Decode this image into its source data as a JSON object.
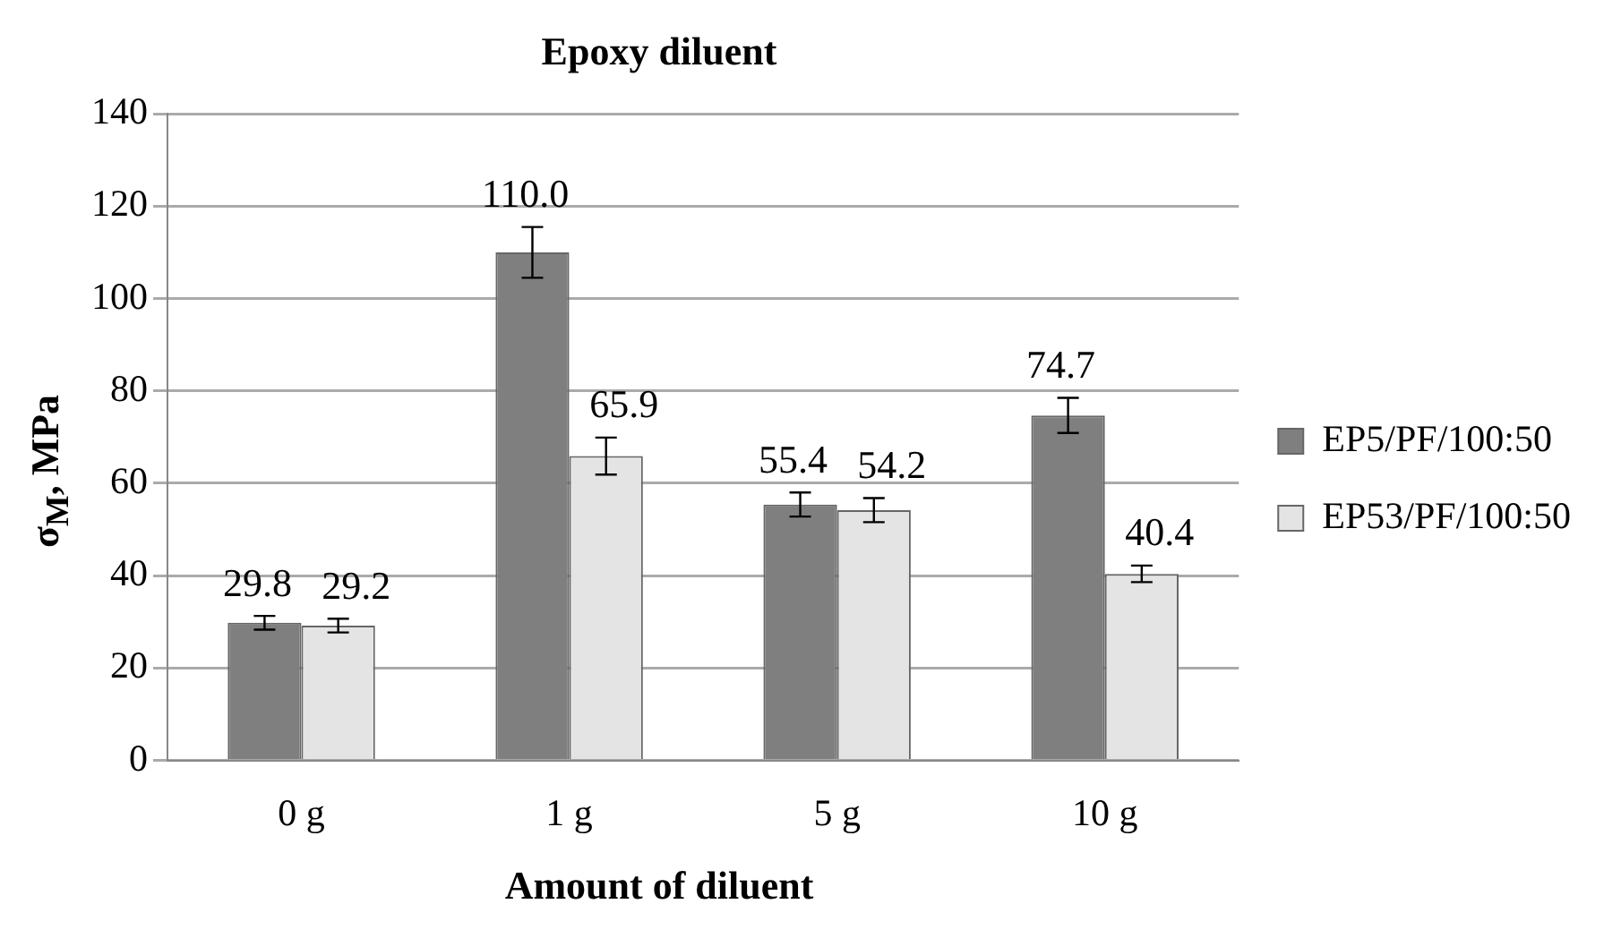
{
  "chart_data": {
    "type": "bar",
    "title": "Epoxy diluent",
    "xlabel": "Amount of diluent",
    "ylabel": "σ$_{M}$, MPa",
    "categories": [
      "0 g",
      "1 g",
      "5 g",
      "10 g"
    ],
    "series": [
      {
        "name": "EP5/PF/100:50",
        "color": "#7f7f7f",
        "values": [
          29.8,
          110.0,
          55.4,
          74.7
        ],
        "value_labels": [
          "29.8",
          "110.0",
          "55.4",
          "74.7"
        ],
        "errors": [
          1.5,
          5.5,
          2.6,
          3.8
        ]
      },
      {
        "name": "EP53/PF/100:50",
        "color": "#e4e4e4",
        "values": [
          29.2,
          65.9,
          54.2,
          40.4
        ],
        "value_labels": [
          "29.2",
          "65.9",
          "54.2",
          "40.4"
        ],
        "errors": [
          1.5,
          4,
          2.6,
          1.8
        ]
      }
    ],
    "ylim": [
      0,
      140
    ],
    "yticks": [
      0,
      20,
      40,
      60,
      80,
      100,
      120,
      140
    ],
    "grid": "y",
    "legend": "right"
  }
}
